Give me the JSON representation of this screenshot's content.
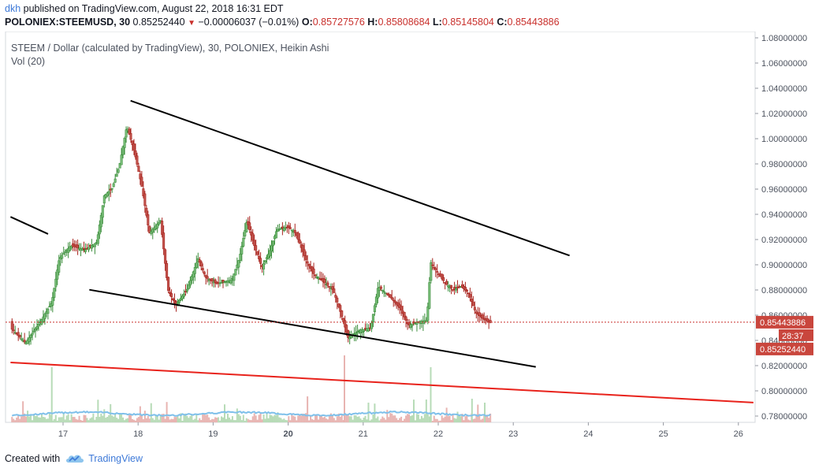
{
  "header": {
    "user": "dkh",
    "published_text": "published on TradingView.com, August 22, 2018 16:31 EDT",
    "symbol": "POLONIEX:STEEMUSD, 30",
    "last": "0.85252440",
    "change": "−0.00006037 (−0.01%)",
    "open_label": "O:",
    "open": "0.85727576",
    "high_label": "H:",
    "high": "0.85808684",
    "low_label": "L:",
    "low": "0.85145804",
    "close_label": "C:",
    "close": "0.85443886"
  },
  "legend": {
    "title": "STEEM / Dollar (calculated by TradingView), 30, POLONIEX, Heikin Ashi",
    "volume": "Vol (20)"
  },
  "chart_data": {
    "type": "candlestick",
    "xlabels": [
      "17",
      "18",
      "19",
      "20",
      "21",
      "22",
      "23",
      "24",
      "25",
      "26"
    ],
    "ylabels": [
      "1.08000000",
      "1.06000000",
      "1.04000000",
      "1.02000000",
      "1.00000000",
      "0.98000000",
      "0.96000000",
      "0.94000000",
      "0.92000000",
      "0.90000000",
      "0.88000000",
      "0.86000000",
      "0.84000000",
      "0.82000000",
      "0.80000000",
      "0.78000000"
    ],
    "ylim": [
      0.775,
      1.085
    ],
    "price_tag_close": "0.85443886",
    "price_tag_last": "0.85252440",
    "countdown": "28:37",
    "path_points": [
      [
        16.3,
        0.85
      ],
      [
        16.5,
        0.838
      ],
      [
        16.7,
        0.855
      ],
      [
        16.85,
        0.87
      ],
      [
        16.95,
        0.905
      ],
      [
        17.1,
        0.915
      ],
      [
        17.3,
        0.912
      ],
      [
        17.45,
        0.918
      ],
      [
        17.55,
        0.955
      ],
      [
        17.65,
        0.96
      ],
      [
        17.75,
        0.978
      ],
      [
        17.85,
        1.01
      ],
      [
        17.95,
        0.99
      ],
      [
        18.05,
        0.962
      ],
      [
        18.15,
        0.925
      ],
      [
        18.3,
        0.935
      ],
      [
        18.4,
        0.88
      ],
      [
        18.5,
        0.868
      ],
      [
        18.65,
        0.88
      ],
      [
        18.8,
        0.905
      ],
      [
        18.9,
        0.89
      ],
      [
        19.05,
        0.885
      ],
      [
        19.25,
        0.888
      ],
      [
        19.35,
        0.905
      ],
      [
        19.45,
        0.935
      ],
      [
        19.55,
        0.915
      ],
      [
        19.65,
        0.898
      ],
      [
        19.75,
        0.91
      ],
      [
        19.85,
        0.928
      ],
      [
        20.0,
        0.93
      ],
      [
        20.1,
        0.925
      ],
      [
        20.25,
        0.902
      ],
      [
        20.35,
        0.892
      ],
      [
        20.5,
        0.885
      ],
      [
        20.6,
        0.88
      ],
      [
        20.7,
        0.862
      ],
      [
        20.8,
        0.842
      ],
      [
        20.95,
        0.848
      ],
      [
        21.1,
        0.85
      ],
      [
        21.2,
        0.883
      ],
      [
        21.35,
        0.875
      ],
      [
        21.5,
        0.865
      ],
      [
        21.6,
        0.852
      ],
      [
        21.75,
        0.855
      ],
      [
        21.85,
        0.856
      ],
      [
        21.9,
        0.902
      ],
      [
        22.0,
        0.893
      ],
      [
        22.1,
        0.885
      ],
      [
        22.2,
        0.88
      ],
      [
        22.3,
        0.883
      ],
      [
        22.4,
        0.878
      ],
      [
        22.5,
        0.862
      ],
      [
        22.6,
        0.857
      ],
      [
        22.7,
        0.854
      ]
    ],
    "trendlines": [
      {
        "color": "#000000",
        "from": [
          16.3,
          0.938
        ],
        "to": [
          16.8,
          0.9244
        ]
      },
      {
        "color": "#000000",
        "from": [
          17.9,
          1.0301
        ],
        "to": [
          23.75,
          0.9073
        ]
      },
      {
        "color": "#000000",
        "from": [
          17.35,
          0.8802
        ],
        "to": [
          23.3,
          0.819
        ]
      },
      {
        "color": "#e8221b",
        "from": [
          16.3,
          0.8225
        ],
        "to": [
          26.2,
          0.7907
        ]
      }
    ],
    "price_line": 0.85443886,
    "colors": {
      "up": "#3b8d3b",
      "down": "#a8231e",
      "up_fill": "#7bbf7b",
      "down_fill": "#c2554e",
      "vol_up": "#b7dbb7",
      "vol_down": "#e8b4b1",
      "vol_ma": "#7fc0ea"
    }
  },
  "footer": {
    "created_with": "Created with",
    "brand": "TradingView"
  }
}
